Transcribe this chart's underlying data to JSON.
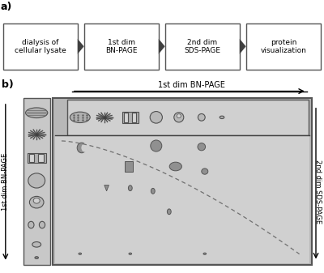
{
  "bg_color": "#ffffff",
  "part_a_label": "a)",
  "part_b_label": "b)",
  "flow_boxes": [
    "dialysis of\ncellular lysate",
    "1st dim\nBN-PAGE",
    "2nd dim\nSDS-PAGE",
    "protein\nvisualization"
  ],
  "label_1st_dim_top": "1st dim BN-PAGE",
  "label_1st_dim_side": "1st dim BN-PAGE",
  "label_2nd_dim": "2nd dim SDS-PAGE",
  "gray_strip": "#c8c8c8",
  "gray_gel_outer": "#b0b0b0",
  "gray_gel_inner": "#d0d0d0",
  "gray_lane": "#c8c8c8",
  "spot_color": "#909090",
  "spot_edge": "#555555",
  "shape_fill": "#b8b8b8",
  "shape_edge": "#505050"
}
